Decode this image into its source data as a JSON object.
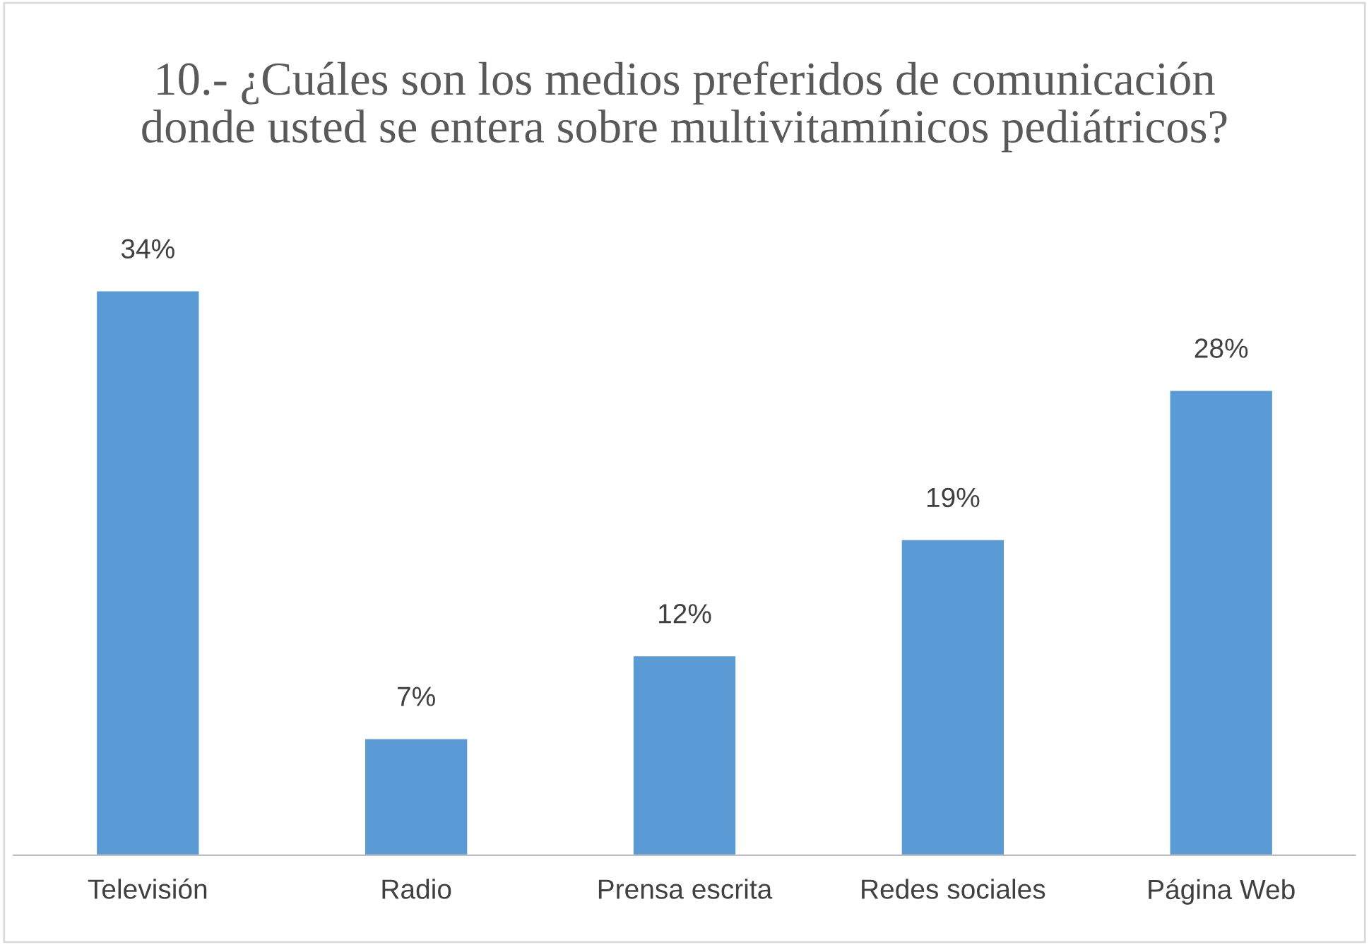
{
  "chart_data": {
    "type": "bar",
    "title": "10.- ¿Cuáles son los medios preferidos de comunicación\ndonde usted se entera sobre multivitamínicos pediátricos?",
    "categories": [
      "Televisión",
      "Radio",
      "Prensa escrita",
      "Redes sociales",
      "Página Web"
    ],
    "values": [
      34,
      7,
      12,
      19,
      28
    ],
    "value_labels": [
      "34%",
      "7%",
      "12%",
      "19%",
      "28%"
    ],
    "color": "#5b9bd5",
    "grid": false,
    "legend": false
  }
}
